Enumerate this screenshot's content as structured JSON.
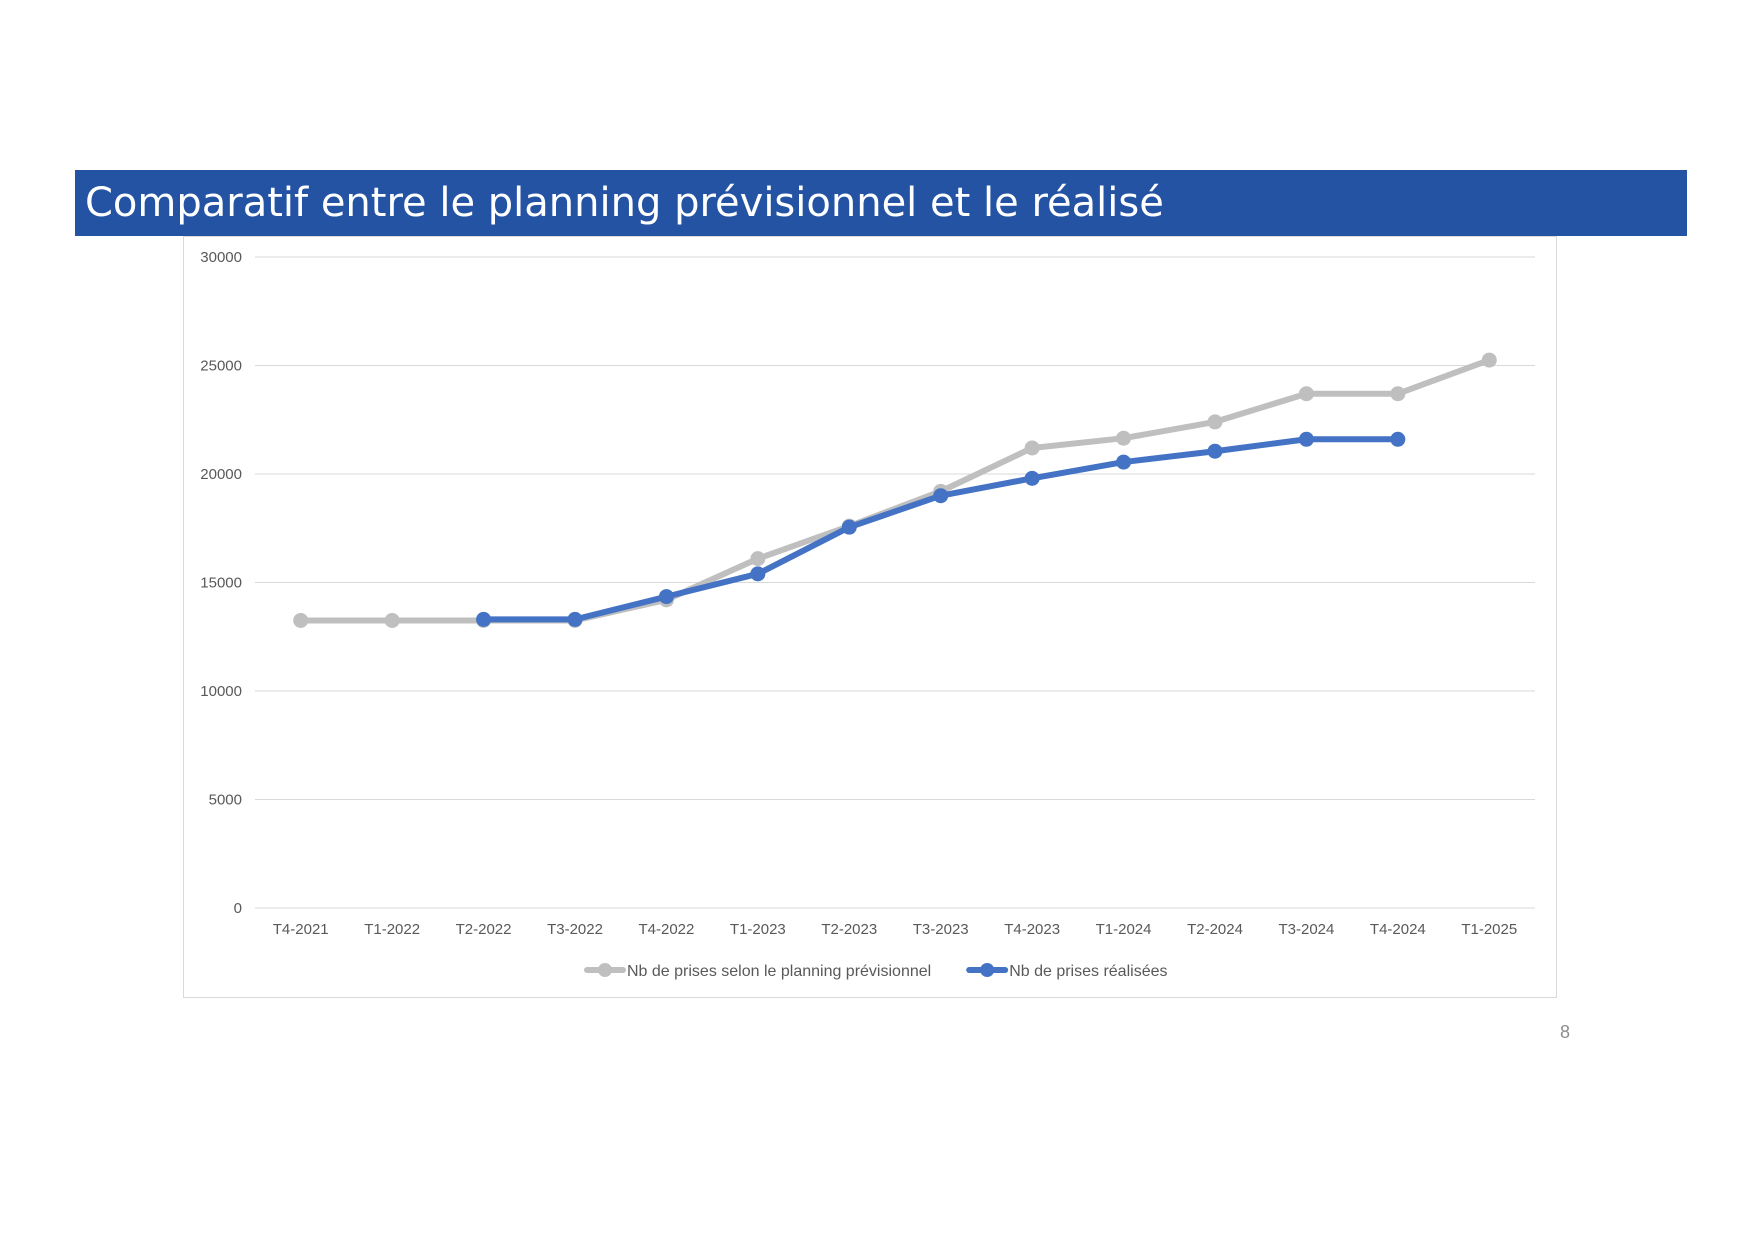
{
  "slide": {
    "title": "Comparatif entre le planning prévisionnel et le réalisé",
    "page_number": "8",
    "title_bar_color": "#2453a4"
  },
  "chart_data": {
    "type": "line",
    "title": "",
    "xlabel": "",
    "ylabel": "",
    "categories": [
      "T4-2021",
      "T1-2022",
      "T2-2022",
      "T3-2022",
      "T4-2022",
      "T1-2023",
      "T2-2023",
      "T3-2023",
      "T4-2023",
      "T1-2024",
      "T2-2024",
      "T3-2024",
      "T4-2024",
      "T1-2025"
    ],
    "ylim": [
      0,
      30000
    ],
    "yticks": [
      0,
      5000,
      10000,
      15000,
      20000,
      25000,
      30000
    ],
    "ytick_labels": [
      "0",
      "5000",
      "10000",
      "15000",
      "20000",
      "25000",
      "30000"
    ],
    "grid": true,
    "legend_position": "bottom",
    "series": [
      {
        "name": "Nb de prises selon le planning prévisionnel",
        "color": "#bfbfbf",
        "marker": "circle",
        "values": [
          13250,
          13250,
          13250,
          13250,
          14200,
          16100,
          17600,
          19200,
          21200,
          21650,
          22400,
          23700,
          23700,
          25250
        ]
      },
      {
        "name": "Nb de prises réalisées",
        "color": "#4472c4",
        "marker": "circle",
        "values": [
          null,
          null,
          13300,
          13300,
          14350,
          15400,
          17550,
          19000,
          19800,
          20550,
          21050,
          21600,
          21600,
          null
        ]
      }
    ]
  }
}
